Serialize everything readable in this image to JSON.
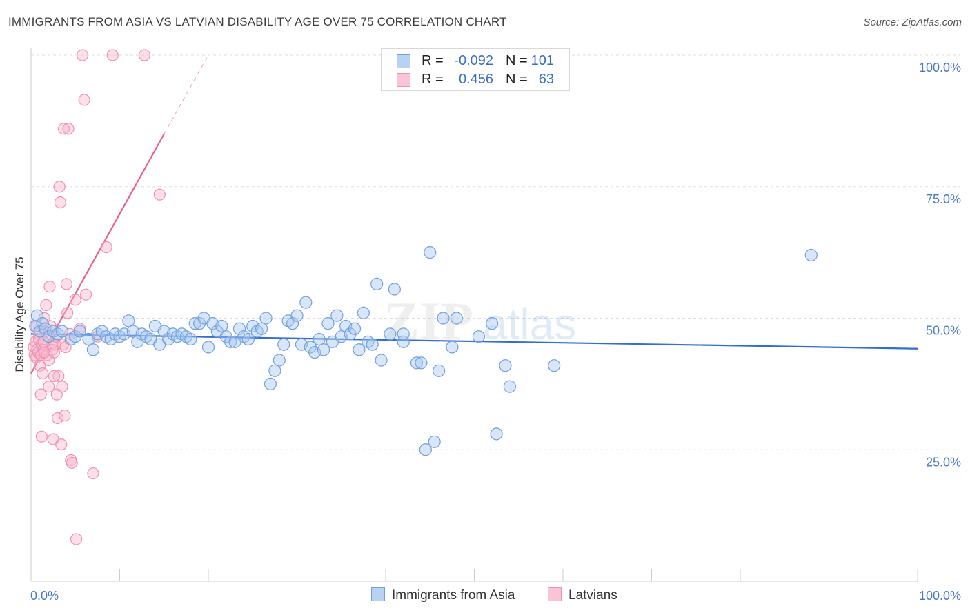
{
  "title": "IMMIGRANTS FROM ASIA VS LATVIAN DISABILITY AGE OVER 75 CORRELATION CHART",
  "source": "Source: ZipAtlas.com",
  "colors": {
    "blue_fill": "#a8c8f0",
    "blue_stroke": "#6fa0e0",
    "blue_line": "#2f6fd0",
    "pink_fill": "#f8b8cc",
    "pink_stroke": "#f090b0",
    "pink_line": "#e8608c",
    "tick_text": "#4a78c8",
    "grid": "#dddddd"
  },
  "legend_top": {
    "rows": [
      {
        "r_label": "R =",
        "r_value": "-0.092",
        "n_label": "N =",
        "n_value": "101"
      },
      {
        "r_label": "R =",
        "r_value": "0.456",
        "n_label": "N =",
        "n_value": "63"
      }
    ]
  },
  "legend_bottom": {
    "items": [
      "Immigrants from Asia",
      "Latvians"
    ]
  },
  "chart_data": {
    "type": "scatter",
    "title": "IMMIGRANTS FROM ASIA VS LATVIAN DISABILITY AGE OVER 75 CORRELATION CHART",
    "xlabel": "",
    "ylabel": "Disability Age Over 75",
    "xlim": [
      0,
      100
    ],
    "ylim": [
      0,
      105
    ],
    "x_tick_labels": [
      "0.0%",
      "100.0%"
    ],
    "y_ticks": [
      25,
      50,
      75,
      100
    ],
    "y_tick_labels": [
      "25.0%",
      "50.0%",
      "75.0%",
      "100.0%"
    ],
    "grid": true,
    "legend_position": "top-center",
    "watermark": "ZIPatlas",
    "series": [
      {
        "name": "Immigrants from Asia",
        "R": -0.092,
        "N": 101,
        "trend": {
          "x": [
            0,
            100
          ],
          "y": [
            47.0,
            44.2
          ]
        },
        "points": [
          [
            0.5,
            48.5
          ],
          [
            0.7,
            50.5
          ],
          [
            1.0,
            47.5
          ],
          [
            1.3,
            49.0
          ],
          [
            1.6,
            48.0
          ],
          [
            2.0,
            46.5
          ],
          [
            2.5,
            47.5
          ],
          [
            3.0,
            47.0
          ],
          [
            3.5,
            47.5
          ],
          [
            4.5,
            46.0
          ],
          [
            5.0,
            46.5
          ],
          [
            5.5,
            47.5
          ],
          [
            6.5,
            46.0
          ],
          [
            7.0,
            44.0
          ],
          [
            7.5,
            47.0
          ],
          [
            8.0,
            47.5
          ],
          [
            8.5,
            46.5
          ],
          [
            9.0,
            46.0
          ],
          [
            9.5,
            47.0
          ],
          [
            10.0,
            46.5
          ],
          [
            10.5,
            47.0
          ],
          [
            11.0,
            49.5
          ],
          [
            11.5,
            47.5
          ],
          [
            12.0,
            45.5
          ],
          [
            12.5,
            47.0
          ],
          [
            13.0,
            46.5
          ],
          [
            13.5,
            46.0
          ],
          [
            14.0,
            48.5
          ],
          [
            14.5,
            45.0
          ],
          [
            15.0,
            47.5
          ],
          [
            15.5,
            46.0
          ],
          [
            16.0,
            47.0
          ],
          [
            16.5,
            46.5
          ],
          [
            17.0,
            47.0
          ],
          [
            17.5,
            46.5
          ],
          [
            18.0,
            46.0
          ],
          [
            18.5,
            49.0
          ],
          [
            19.0,
            49.0
          ],
          [
            19.5,
            50.0
          ],
          [
            20.0,
            44.5
          ],
          [
            20.5,
            49.0
          ],
          [
            21.0,
            47.5
          ],
          [
            21.5,
            48.5
          ],
          [
            22.0,
            46.5
          ],
          [
            22.5,
            45.5
          ],
          [
            23.0,
            45.5
          ],
          [
            23.5,
            48.0
          ],
          [
            24.0,
            46.5
          ],
          [
            24.5,
            46.0
          ],
          [
            25.0,
            48.5
          ],
          [
            25.5,
            47.5
          ],
          [
            26.0,
            48.0
          ],
          [
            26.5,
            50.0
          ],
          [
            27.0,
            37.5
          ],
          [
            27.5,
            40.0
          ],
          [
            28.0,
            42.0
          ],
          [
            28.5,
            45.0
          ],
          [
            29.0,
            49.5
          ],
          [
            29.5,
            49.0
          ],
          [
            30.0,
            50.5
          ],
          [
            30.5,
            45.0
          ],
          [
            31.0,
            53.0
          ],
          [
            31.5,
            44.5
          ],
          [
            32.0,
            43.5
          ],
          [
            32.5,
            46.0
          ],
          [
            33.0,
            44.0
          ],
          [
            33.5,
            49.0
          ],
          [
            34.0,
            45.5
          ],
          [
            34.5,
            50.5
          ],
          [
            35.0,
            46.5
          ],
          [
            35.5,
            48.5
          ],
          [
            36.0,
            47.0
          ],
          [
            36.5,
            48.0
          ],
          [
            37.0,
            44.0
          ],
          [
            37.5,
            51.0
          ],
          [
            38.0,
            45.5
          ],
          [
            38.5,
            45.0
          ],
          [
            39.0,
            56.5
          ],
          [
            39.5,
            42.0
          ],
          [
            40.5,
            47.0
          ],
          [
            41.0,
            55.5
          ],
          [
            42.0,
            45.5
          ],
          [
            42.0,
            47.0
          ],
          [
            43.5,
            41.5
          ],
          [
            44.0,
            41.5
          ],
          [
            44.5,
            25.0
          ],
          [
            45.0,
            62.5
          ],
          [
            45.5,
            26.5
          ],
          [
            46.5,
            50.0
          ],
          [
            46.0,
            40.0
          ],
          [
            47.5,
            44.5
          ],
          [
            48.0,
            50.0
          ],
          [
            50.5,
            46.5
          ],
          [
            52.5,
            28.0
          ],
          [
            52.0,
            49.0
          ],
          [
            53.5,
            41.0
          ],
          [
            54.0,
            37.0
          ],
          [
            59.0,
            41.0
          ],
          [
            88.0,
            62.0
          ]
        ]
      },
      {
        "name": "Latvians",
        "R": 0.456,
        "N": 63,
        "trend": {
          "x": [
            0,
            15.0
          ],
          "y": [
            39.5,
            85.0
          ],
          "dashed_extension": {
            "x": [
              15.0,
              20.0
            ],
            "y": [
              85.0,
              100.0
            ]
          }
        },
        "points": [
          [
            0.3,
            44.5
          ],
          [
            0.4,
            43.0
          ],
          [
            0.5,
            45.5
          ],
          [
            0.6,
            42.5
          ],
          [
            0.7,
            44.0
          ],
          [
            0.8,
            43.5
          ],
          [
            0.9,
            46.0
          ],
          [
            1.0,
            41.0
          ],
          [
            1.1,
            43.0
          ],
          [
            1.2,
            45.0
          ],
          [
            1.3,
            39.5
          ],
          [
            1.4,
            44.0
          ],
          [
            1.5,
            50.0
          ],
          [
            1.6,
            47.5
          ],
          [
            1.7,
            52.5
          ],
          [
            1.8,
            43.0
          ],
          [
            1.9,
            46.5
          ],
          [
            2.0,
            37.0
          ],
          [
            2.0,
            42.0
          ],
          [
            2.1,
            56.0
          ],
          [
            2.2,
            48.5
          ],
          [
            2.3,
            45.0
          ],
          [
            2.4,
            44.0
          ],
          [
            2.5,
            27.0
          ],
          [
            2.6,
            43.5
          ],
          [
            2.7,
            45.0
          ],
          [
            2.8,
            46.5
          ],
          [
            2.9,
            35.5
          ],
          [
            3.0,
            31.0
          ],
          [
            3.1,
            39.0
          ],
          [
            3.2,
            75.0
          ],
          [
            3.3,
            72.0
          ],
          [
            3.4,
            26.0
          ],
          [
            3.5,
            37.0
          ],
          [
            3.6,
            45.0
          ],
          [
            3.7,
            86.0
          ],
          [
            3.8,
            31.5
          ],
          [
            4.0,
            56.5
          ],
          [
            4.1,
            51.0
          ],
          [
            4.2,
            86.0
          ],
          [
            4.4,
            47.0
          ],
          [
            4.5,
            23.0
          ],
          [
            4.6,
            22.5
          ],
          [
            5.0,
            53.5
          ],
          [
            5.1,
            8.0
          ],
          [
            5.5,
            48.0
          ],
          [
            5.8,
            100.0
          ],
          [
            6.0,
            91.5
          ],
          [
            6.2,
            54.5
          ],
          [
            7.0,
            20.5
          ],
          [
            7.5,
            46.5
          ],
          [
            8.5,
            63.5
          ],
          [
            9.2,
            100.0
          ],
          [
            12.8,
            100.0
          ],
          [
            14.5,
            73.5
          ],
          [
            1.1,
            35.5
          ],
          [
            1.2,
            27.5
          ],
          [
            1.5,
            43.5
          ],
          [
            2.6,
            39.0
          ],
          [
            0.9,
            47.0
          ],
          [
            1.4,
            45.5
          ],
          [
            0.6,
            48.5
          ],
          [
            3.9,
            44.5
          ]
        ]
      }
    ]
  }
}
